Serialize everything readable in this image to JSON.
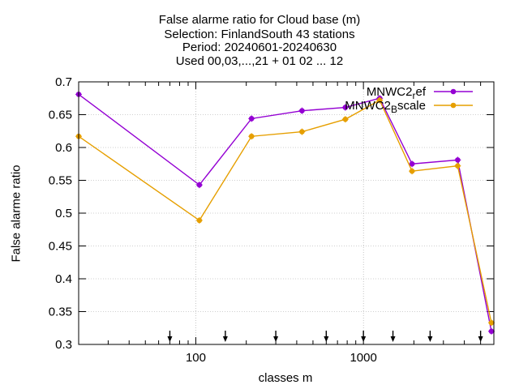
{
  "title_lines": [
    "False alarme ratio  for Cloud base (m)",
    "Selection: FinlandSouth     43 stations",
    "Period: 20240601-20240630",
    "Used 00,03,...,21 + 01 02 ... 12"
  ],
  "chart_data": {
    "type": "line",
    "xlabel": "classes m",
    "ylabel": "False alarme ratio",
    "xscale": "log",
    "xlim": [
      20,
      6000
    ],
    "ylim": [
      0.3,
      0.7
    ],
    "yticks": [
      0.3,
      0.35,
      0.4,
      0.45,
      0.5,
      0.55,
      0.6,
      0.65,
      0.7
    ],
    "ytick_labels": [
      "0.3",
      "0.35",
      "0.4",
      "0.45",
      "0.5",
      "0.55",
      "0.6",
      "0.65",
      "0.7"
    ],
    "xticks": [
      100,
      1000
    ],
    "xtick_labels": [
      "100",
      "1000"
    ],
    "grid": true,
    "legend_position": "top-right",
    "series": [
      {
        "name": "MNWC2_ref",
        "color": "#9400d3",
        "x": [
          20,
          105,
          215,
          430,
          780,
          1250,
          1950,
          3650,
          5800
        ],
        "values": [
          0.681,
          0.543,
          0.644,
          0.656,
          0.661,
          0.675,
          0.575,
          0.581,
          0.32
        ]
      },
      {
        "name": "MNWC2_Bscale",
        "color": "#e69f00",
        "x": [
          20,
          105,
          215,
          430,
          780,
          1250,
          1950,
          3650,
          5800
        ],
        "values": [
          0.617,
          0.489,
          0.617,
          0.624,
          0.643,
          0.672,
          0.564,
          0.572,
          0.333
        ]
      }
    ],
    "arrow_markers_x": [
      70,
      150,
      300,
      600,
      1000,
      1500,
      2500,
      5000
    ]
  }
}
